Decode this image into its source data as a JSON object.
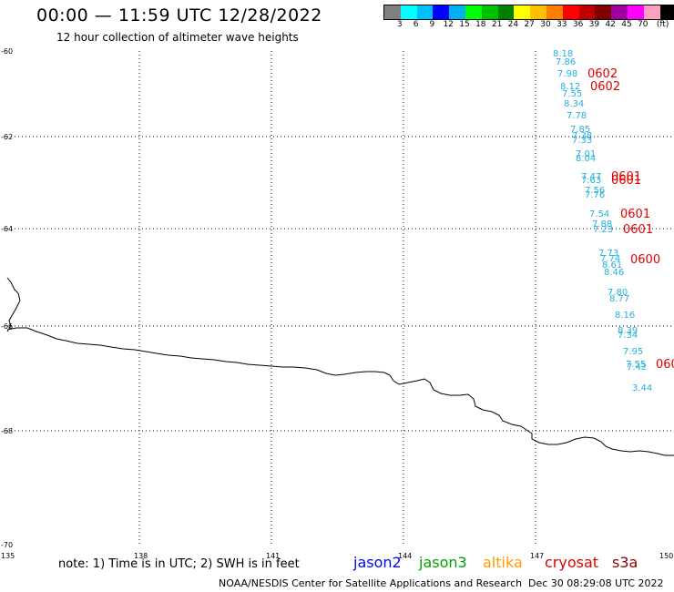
{
  "header": {
    "title": "00:00 — 11:59 UTC 12/28/2022",
    "subtitle": "12 hour collection of altimeter wave heights"
  },
  "legend": {
    "colors": [
      "#808080",
      "#00ffff",
      "#00c0ff",
      "#0000ff",
      "#00b0f0",
      "#00ff00",
      "#00c000",
      "#008000",
      "#ffff00",
      "#ffc000",
      "#ff8000",
      "#ff0000",
      "#c00000",
      "#800000",
      "#a000a0",
      "#ff00ff",
      "#ffa0c0",
      "#000000"
    ],
    "labels": [
      "3",
      "6",
      "9",
      "12",
      "15",
      "18",
      "21",
      "24",
      "27",
      "30",
      "33",
      "36",
      "39",
      "42",
      "45",
      "70"
    ],
    "unit": "(ft)"
  },
  "axes": {
    "lat_labels": [
      "-60",
      "-62",
      "-64",
      "-66",
      "-68",
      "-70"
    ],
    "lon_labels": [
      "135",
      "138",
      "141",
      "144",
      "147",
      "150"
    ]
  },
  "wave_heights": {
    "color": "#22b0e0",
    "values": [
      "8.18",
      "7.86",
      "7.98",
      "8.12",
      "7.55",
      "8.34",
      "7.78",
      "7.85",
      "7.38",
      "7.33",
      "7.01",
      "8.04",
      "7.47",
      "7.63",
      "7.56",
      "7.76",
      "7.54",
      "7.88",
      "7.23",
      "7.73",
      "7.74",
      "8.61",
      "8.46",
      "7.80",
      "8.77",
      "8.16",
      "8.39",
      "7.34",
      "7.95",
      "7.55",
      "7.42",
      "3.44"
    ]
  },
  "pass_times": {
    "color": "#e00000",
    "values": [
      "0602",
      "0602",
      "0601",
      "0601",
      "0601",
      "0601",
      "0600",
      "060"
    ]
  },
  "footer": {
    "note": "note: 1) Time is in UTC; 2) SWH is in feet",
    "satellites": [
      {
        "name": "jason2",
        "color": "#0000ff"
      },
      {
        "name": "jason3",
        "color": "#00a000"
      },
      {
        "name": "altika",
        "color": "#ff9900"
      },
      {
        "name": "cryosat",
        "color": "#e00000"
      },
      {
        "name": "s3a",
        "color": "#8b0000"
      }
    ],
    "credit": "NOAA/NESDIS Center for Satellite Applications and Research",
    "generated": "Dec 30 08:29:08 UTC 2022"
  }
}
